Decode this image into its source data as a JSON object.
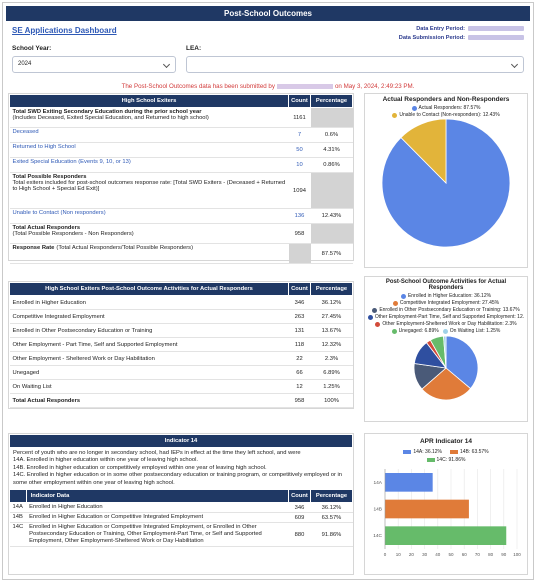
{
  "page": {
    "title": "Post-School Outcomes",
    "dashboard_link": "SE Applications Dashboard",
    "data_entry_period_label": "Data Entry Period:",
    "data_submission_period_label": "Data Submission Period:",
    "school_year_label": "School Year:",
    "school_year_value": "2024",
    "lea_label": "LEA:",
    "lea_value": "",
    "notice_prefix": "The Post-School Outcomes data has been submitted by",
    "notice_suffix": "on May 3, 2024, 2:49:23 PM."
  },
  "exiters": {
    "headers": [
      "High School Exiters",
      "Count",
      "Percentage"
    ],
    "rows": [
      {
        "title": "Total SWD Exiting Secondary Education during the prior school year",
        "sub": "(Includes Deceased, Exited Special Education, and Returned to high school)",
        "count": "1161",
        "pct": "",
        "style": "bold",
        "gray": true
      },
      {
        "title": "Deceased",
        "sub": "",
        "count": "7",
        "pct": "0.6%",
        "style": "link",
        "gray": false
      },
      {
        "title": "Returned to High School",
        "sub": "",
        "count": "50",
        "pct": "4.31%",
        "style": "link",
        "gray": false
      },
      {
        "title": "Exited Special Education (Events 9, 10, or 13)",
        "sub": "",
        "count": "10",
        "pct": "0.86%",
        "style": "link",
        "gray": false
      },
      {
        "title": "Total Possible Responders",
        "sub": "Total exiters included for post-school outcomes response rate: [Total SWD Exiters - (Deceased + Returned to High School + Special Ed Exit)]",
        "count": "1094",
        "pct": "",
        "style": "bold",
        "gray": true
      },
      {
        "title": "Unable to Contact (Non responders)",
        "sub": "",
        "count": "136",
        "pct": "12.43%",
        "style": "link",
        "gray": false
      },
      {
        "title": "Total Actual Responders",
        "sub": "(Total Possible Responders - Non Responders)",
        "count": "958",
        "pct": "",
        "style": "bold",
        "gray": true
      },
      {
        "title": "Response Rate",
        "sub": "(Total Actual Responders/Total Possible Responders)",
        "count": "",
        "pct": "87.57%",
        "style": "rate",
        "gray": false
      }
    ]
  },
  "activities": {
    "headers": [
      "High School Exiters Post-School Outcome Activities for Actual Responders",
      "Count",
      "Percentage"
    ],
    "rows": [
      {
        "label": "Enrolled in Higher Education",
        "count": "346",
        "pct": "36.12%",
        "bold": false
      },
      {
        "label": "Competitive Integrated Employment",
        "count": "263",
        "pct": "27.45%",
        "bold": false
      },
      {
        "label": "Enrolled in Other Postsecondary Education or Training",
        "count": "131",
        "pct": "13.67%",
        "bold": false
      },
      {
        "label": "Other Employment - Part Time, Self and Supported Employment",
        "count": "118",
        "pct": "12.32%",
        "bold": false
      },
      {
        "label": "Other Employment - Sheltered Work or Day Habilitation",
        "count": "22",
        "pct": "2.3%",
        "bold": false
      },
      {
        "label": "Unegaged",
        "count": "66",
        "pct": "6.89%",
        "bold": false
      },
      {
        "label": "On Waiting List",
        "count": "12",
        "pct": "1.25%",
        "bold": false
      },
      {
        "label": "Total Actual Responders",
        "count": "958",
        "pct": "100%",
        "bold": true
      }
    ]
  },
  "indicator": {
    "header": "Indicator 14",
    "description": [
      "Percent of youth who are no longer in secondary school, had IEPs in effect at the time they left school, and were",
      "14A. Enrolled in higher education within one year of leaving high school.",
      "14B. Enrolled in higher education or competitively employed within one year of leaving high school.",
      "14C. Enrolled in higher education or in some other postsecondary education or training program, or competitively employed or in some other employment within one year of leaving high school."
    ],
    "headers": [
      "",
      "Indicator Data",
      "Count",
      "Percentage"
    ],
    "rows": [
      {
        "code": "14A",
        "label": "Enrolled in Higher Education",
        "count": "346",
        "pct": "36.12%"
      },
      {
        "code": "14B",
        "label": "Enrolled in Higher Education or Competitive Integrated Employment",
        "count": "609",
        "pct": "63.57%"
      },
      {
        "code": "14C",
        "label": "Enrolled in Higher Education or Competitive Integrated Employment, or Enrolled in Other Postsecondary Education or Training, Other Employment-Part Time, or Self and Supported Employment, Other Employment-Sheltered Work or Day Habilitation",
        "count": "880",
        "pct": "91.86%"
      }
    ]
  },
  "chart_data": [
    {
      "type": "pie",
      "title": "Actual Responders and Non-Responders",
      "legend": [
        "Actual Responders: 87.57%",
        "Unable to Contact (Non-responders): 12.43%"
      ],
      "values": [
        87.57,
        12.43
      ],
      "colors": [
        "#5b86e5",
        "#e2b43a"
      ]
    },
    {
      "type": "pie",
      "title": "Post-School Outcome Activities for Actual Responders",
      "legend": [
        "Enrolled in Higher Education: 36.12%",
        "Competitive Integrated Employment: 27.45%",
        "Enrolled in Other Postsecondary Education or Training: 13.67%",
        "Other Employment-Part Time, Self and Supported Employment: 12.",
        "Other Employment-Sheltered Work or Day Habilitation: 2.3%",
        "Unegaged: 6.89%",
        "On Waiting List: 1.25%"
      ],
      "values": [
        36.12,
        27.45,
        13.67,
        12.32,
        2.3,
        6.89,
        1.25
      ],
      "colors": [
        "#5b86e5",
        "#e07b39",
        "#4a5a78",
        "#2f4fa0",
        "#d24b3a",
        "#66bb6a",
        "#9fd1e8"
      ]
    },
    {
      "type": "bar",
      "title": "APR Indicator 14",
      "orientation": "horizontal",
      "categories": [
        "14A",
        "14B",
        "14C"
      ],
      "legend": [
        "14A: 36.12%",
        "14B: 63.57%",
        "14C: 91.86%"
      ],
      "values": [
        36.12,
        63.57,
        91.86
      ],
      "colors": [
        "#5b86e5",
        "#e07b39",
        "#66bb6a"
      ],
      "xlim": [
        0,
        100
      ],
      "xticks": [
        "0",
        "10",
        "20",
        "30",
        "40",
        "50",
        "60",
        "70",
        "80",
        "90",
        "100"
      ]
    }
  ]
}
